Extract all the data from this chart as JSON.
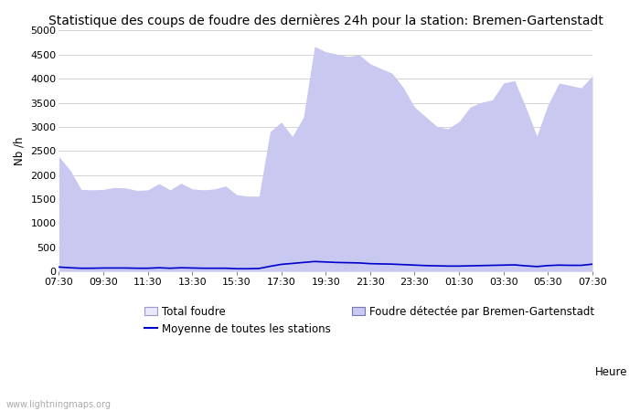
{
  "title": "Statistique des coups de foudre des dernières 24h pour la station: Bremen-Gartenstadt",
  "xlabel": "Heure",
  "ylabel": "Nb /h",
  "watermark": "www.lightningmaps.org",
  "ylim": [
    0,
    5000
  ],
  "yticks": [
    0,
    500,
    1000,
    1500,
    2000,
    2500,
    3000,
    3500,
    4000,
    4500,
    5000
  ],
  "xtick_labels": [
    "07:30",
    "09:30",
    "11:30",
    "13:30",
    "15:30",
    "17:30",
    "19:30",
    "21:30",
    "23:30",
    "01:30",
    "03:30",
    "05:30",
    "07:30"
  ],
  "legend_row1_left": "Total foudre",
  "legend_row1_right": "Moyenne de toutes les stations",
  "legend_row2": "Foudre détectée par Bremen-Gartenstadt",
  "total_foudre": [
    2380,
    2100,
    1700,
    1690,
    1700,
    1740,
    1730,
    1680,
    1690,
    1820,
    1690,
    1830,
    1710,
    1690,
    1710,
    1770,
    1590,
    1560,
    1560,
    1600,
    1620,
    1610,
    1600,
    1620,
    1610,
    1610,
    1615,
    1610,
    1600,
    1600,
    1595,
    1570,
    1560,
    1550,
    1540,
    1530,
    1540,
    1550,
    1560,
    1565,
    1580,
    1585,
    1560,
    1540,
    1570,
    1580,
    1575,
    1570,
    1590
  ],
  "station_foudre": [
    2380,
    2100,
    1700,
    1690,
    1700,
    1740,
    1730,
    1680,
    1690,
    1820,
    1690,
    1830,
    1710,
    1690,
    1710,
    1770,
    1590,
    1560,
    1560,
    2900,
    3100,
    2800,
    3200,
    4670,
    4560,
    4510,
    4460,
    4500,
    4310,
    4210,
    4110,
    3810,
    3410,
    3210,
    3010,
    2960,
    3110,
    3410,
    3510,
    3560,
    3910,
    3960,
    3410,
    2810,
    3460,
    3910,
    3860,
    3810,
    4060
  ],
  "moyenne": [
    90,
    75,
    65,
    65,
    70,
    70,
    70,
    65,
    65,
    75,
    65,
    75,
    70,
    65,
    65,
    65,
    55,
    55,
    60,
    105,
    145,
    165,
    185,
    205,
    195,
    185,
    180,
    175,
    160,
    155,
    150,
    140,
    130,
    120,
    115,
    110,
    110,
    115,
    120,
    125,
    130,
    135,
    115,
    100,
    120,
    130,
    125,
    125,
    150
  ],
  "total_foudre_color": "#e8e8f8",
  "station_foudre_color": "#c8c8f0",
  "moyenne_color": "#0000cc",
  "bg_color": "#ffffff",
  "grid_color": "#cccccc",
  "title_fontsize": 10,
  "label_fontsize": 8.5,
  "tick_fontsize": 8
}
